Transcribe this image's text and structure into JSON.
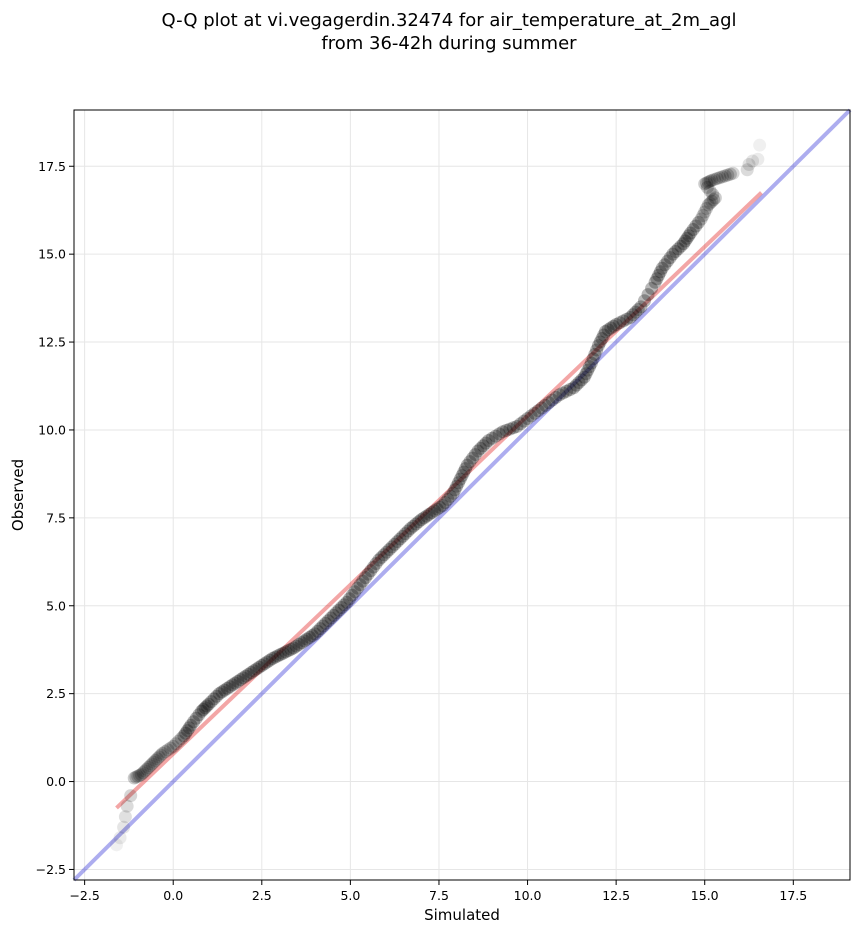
{
  "chart_data": {
    "type": "scatter",
    "title": "Q-Q plot at vi.vegagerdin.32474 for air_temperature_at_2m_agl",
    "subtitle": "from 36-42h during summer",
    "xlabel": "Simulated",
    "ylabel": "Observed",
    "xlim": [
      -2.8,
      19.1
    ],
    "ylim": [
      -2.8,
      19.1
    ],
    "x_ticks": [
      -2.5,
      0.0,
      2.5,
      5.0,
      7.5,
      10.0,
      12.5,
      15.0,
      17.5
    ],
    "y_ticks": [
      -2.5,
      0.0,
      2.5,
      5.0,
      7.5,
      10.0,
      12.5,
      15.0,
      17.5
    ],
    "x_tick_labels": [
      "−2.5",
      "0.0",
      "2.5",
      "5.0",
      "7.5",
      "10.0",
      "12.5",
      "15.0",
      "17.5"
    ],
    "y_tick_labels": [
      "−2.5",
      "0.0",
      "2.5",
      "5.0",
      "7.5",
      "10.0",
      "12.5",
      "15.0",
      "17.5"
    ],
    "grid": true,
    "identity_line": {
      "color": "#0000cc",
      "from": [
        -2.8,
        -2.8
      ],
      "to": [
        19.1,
        19.1
      ]
    },
    "fit_line": {
      "color": "#dd0000",
      "points": [
        [
          -1.6,
          -0.75
        ],
        [
          16.6,
          16.75
        ]
      ]
    },
    "point_color": "#000000",
    "quantiles": [
      [
        -1.6,
        -1.8
      ],
      [
        -1.5,
        -1.6
      ],
      [
        -1.4,
        -1.3
      ],
      [
        -1.35,
        -1.0
      ],
      [
        -1.3,
        -0.7
      ],
      [
        -1.2,
        -0.4
      ],
      [
        -1.1,
        0.1
      ],
      [
        -0.9,
        0.2
      ],
      [
        -0.7,
        0.4
      ],
      [
        -0.5,
        0.6
      ],
      [
        -0.3,
        0.8
      ],
      [
        0.0,
        1.0
      ],
      [
        0.3,
        1.3
      ],
      [
        0.5,
        1.6
      ],
      [
        0.8,
        2.0
      ],
      [
        1.0,
        2.2
      ],
      [
        1.3,
        2.5
      ],
      [
        1.6,
        2.7
      ],
      [
        1.9,
        2.9
      ],
      [
        2.2,
        3.1
      ],
      [
        2.5,
        3.3
      ],
      [
        2.8,
        3.5
      ],
      [
        3.1,
        3.65
      ],
      [
        3.4,
        3.8
      ],
      [
        3.7,
        4.0
      ],
      [
        4.0,
        4.2
      ],
      [
        4.3,
        4.5
      ],
      [
        4.6,
        4.8
      ],
      [
        4.9,
        5.1
      ],
      [
        5.2,
        5.5
      ],
      [
        5.5,
        5.9
      ],
      [
        5.8,
        6.3
      ],
      [
        6.1,
        6.6
      ],
      [
        6.4,
        6.9
      ],
      [
        6.7,
        7.2
      ],
      [
        7.0,
        7.45
      ],
      [
        7.3,
        7.65
      ],
      [
        7.6,
        7.85
      ],
      [
        7.9,
        8.2
      ],
      [
        8.1,
        8.6
      ],
      [
        8.3,
        9.0
      ],
      [
        8.6,
        9.4
      ],
      [
        8.9,
        9.7
      ],
      [
        9.3,
        9.95
      ],
      [
        9.7,
        10.1
      ],
      [
        10.1,
        10.4
      ],
      [
        10.5,
        10.7
      ],
      [
        10.9,
        11.0
      ],
      [
        11.3,
        11.2
      ],
      [
        11.6,
        11.5
      ],
      [
        11.8,
        11.9
      ],
      [
        12.0,
        12.4
      ],
      [
        12.2,
        12.8
      ],
      [
        12.5,
        13.0
      ],
      [
        12.9,
        13.2
      ],
      [
        13.2,
        13.5
      ],
      [
        13.6,
        14.2
      ],
      [
        13.8,
        14.6
      ],
      [
        14.1,
        15.0
      ],
      [
        14.4,
        15.3
      ],
      [
        14.6,
        15.6
      ],
      [
        14.9,
        16.0
      ],
      [
        15.1,
        16.4
      ],
      [
        15.3,
        16.6
      ],
      [
        15.0,
        17.0
      ],
      [
        15.2,
        17.1
      ],
      [
        15.5,
        17.2
      ],
      [
        15.8,
        17.3
      ],
      [
        16.2,
        17.4
      ],
      [
        16.25,
        17.55
      ],
      [
        16.35,
        17.65
      ],
      [
        16.5,
        17.7
      ],
      [
        16.55,
        18.1
      ]
    ]
  }
}
